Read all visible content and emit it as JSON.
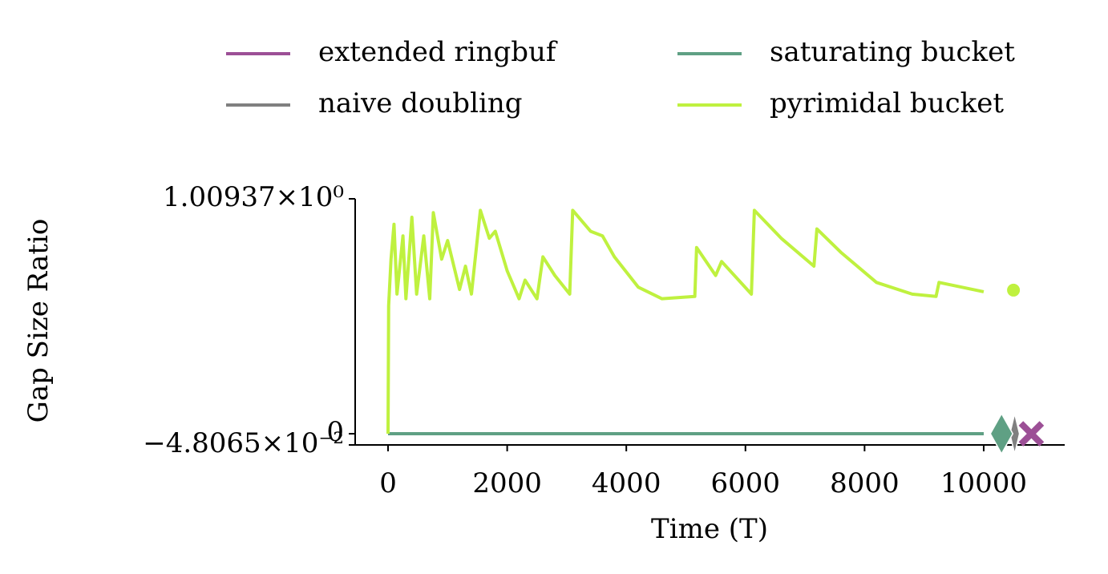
{
  "chart_data": {
    "type": "line",
    "xlabel": "Time (T)",
    "ylabel": "Gap Size Ratio",
    "xlim": [
      -552,
      11360
    ],
    "ylim": [
      -0.048065,
      1.00937
    ],
    "xticks": [
      0,
      2000,
      4000,
      6000,
      8000,
      10000
    ],
    "yticks": [
      {
        "value": -0.048065,
        "label": "−4.8065×10⁻²"
      },
      0,
      {
        "value": 1.00937,
        "label": "1.00937×10⁰"
      }
    ],
    "legend": "top",
    "series": [
      {
        "name": "extended ringbuf",
        "color": "#9c4f96",
        "x": [
          0,
          10000
        ],
        "values": [
          0,
          0
        ],
        "marker": "x",
        "marker_x": 10800,
        "marker_value": 0
      },
      {
        "name": "naive doubling",
        "color": "#808080",
        "x": [
          0,
          10000
        ],
        "values": [
          0,
          0
        ],
        "marker": "thin_diamond",
        "marker_x": 10520,
        "marker_value": 0
      },
      {
        "name": "saturating bucket",
        "color": "#5fa084",
        "x": [
          0,
          10000
        ],
        "values": [
          0,
          0
        ],
        "marker": "diamond",
        "marker_x": 10300,
        "marker_value": 0
      },
      {
        "name": "pyrimidal bucket",
        "color": "#bff13f",
        "x": [
          0,
          10,
          50,
          100,
          150,
          250,
          300,
          400,
          480,
          600,
          700,
          760,
          900,
          1000,
          1200,
          1300,
          1400,
          1550,
          1700,
          1800,
          2000,
          2200,
          2300,
          2500,
          2600,
          2800,
          3050,
          3100,
          3400,
          3600,
          3800,
          4200,
          4600,
          5150,
          5180,
          5500,
          5600,
          6100,
          6150,
          6600,
          7150,
          7200,
          7600,
          8200,
          8800,
          9200,
          9250,
          10000
        ],
        "values": [
          0,
          0.55,
          0.75,
          0.9,
          0.6,
          0.85,
          0.58,
          0.93,
          0.6,
          0.85,
          0.58,
          0.95,
          0.75,
          0.83,
          0.62,
          0.72,
          0.6,
          0.96,
          0.84,
          0.87,
          0.7,
          0.58,
          0.66,
          0.58,
          0.76,
          0.68,
          0.6,
          0.96,
          0.87,
          0.85,
          0.76,
          0.63,
          0.58,
          0.59,
          0.8,
          0.68,
          0.74,
          0.6,
          0.96,
          0.84,
          0.72,
          0.88,
          0.78,
          0.65,
          0.6,
          0.59,
          0.65,
          0.61
        ],
        "marker": "circle",
        "marker_x": 10500,
        "marker_value": 0.617
      }
    ]
  }
}
